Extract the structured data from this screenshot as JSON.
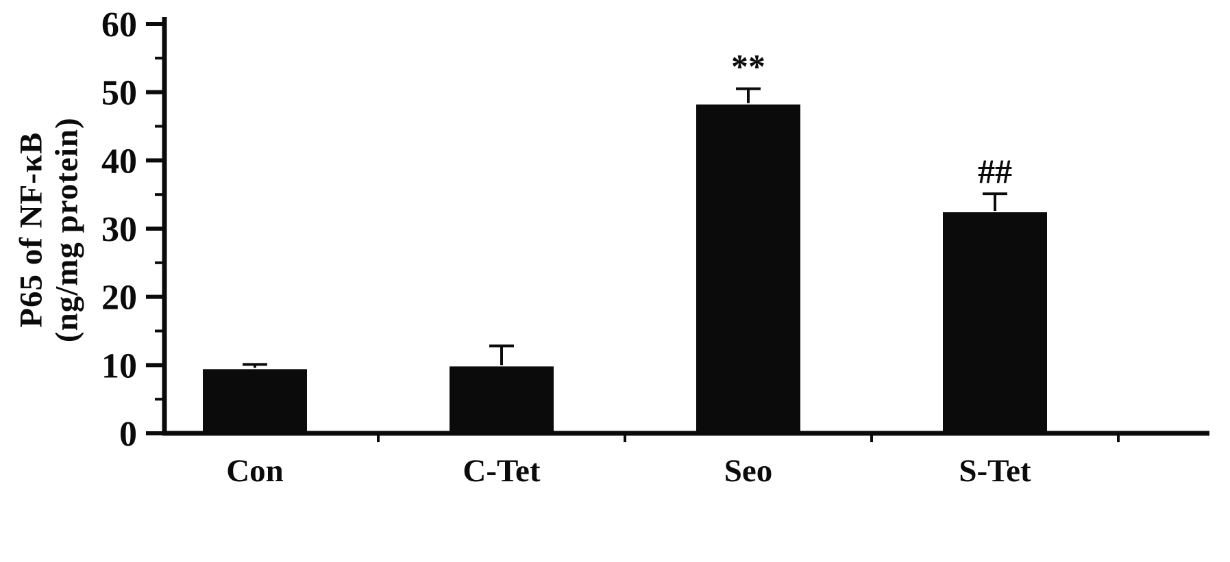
{
  "chart_data": {
    "type": "bar",
    "title": "",
    "ylabel_line1": "P65 of NF-κB",
    "ylabel_line2": "(ng/mg protein)",
    "categories": [
      "Con",
      "C-Tet",
      "Seo",
      "S-Tet"
    ],
    "values": [
      9.4,
      9.8,
      48.2,
      32.4
    ],
    "errors": [
      0.7,
      3.0,
      2.3,
      2.7
    ],
    "annotations": [
      "",
      "",
      "**",
      "##"
    ],
    "ylim": [
      0,
      60
    ],
    "yticks": [
      0,
      10,
      20,
      30,
      40,
      50,
      60
    ],
    "minor_ytick_step": 5,
    "bar_color": "#0b0b0b",
    "axis_color": "#0b0b0b",
    "text_color": "#0b0b0b",
    "grid": "off",
    "legend": "none"
  }
}
